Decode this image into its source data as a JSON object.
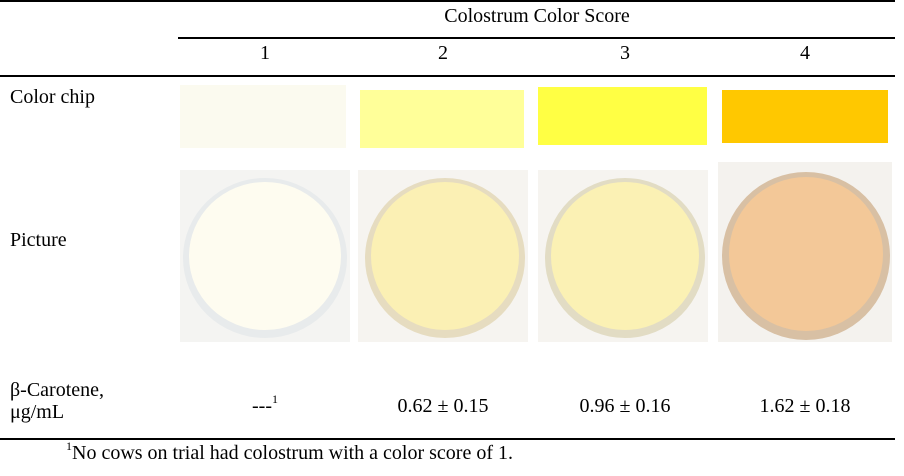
{
  "header": {
    "title": "Colostrum Color Score",
    "columns": [
      "1",
      "2",
      "3",
      "4"
    ]
  },
  "rows": [
    {
      "label": "Color chip"
    },
    {
      "label": "Picture"
    },
    {
      "label": [
        "β-Carotene,",
        "μg/mL"
      ],
      "cells": [
        {
          "text": "---",
          "note": "1"
        },
        "0.62 ± 0.15",
        "0.96 ± 0.16",
        "1.62 ± 0.18"
      ]
    }
  ],
  "footnote": {
    "mark": "1",
    "text": "No cows on trial had colostrum with a color score of 1."
  }
}
